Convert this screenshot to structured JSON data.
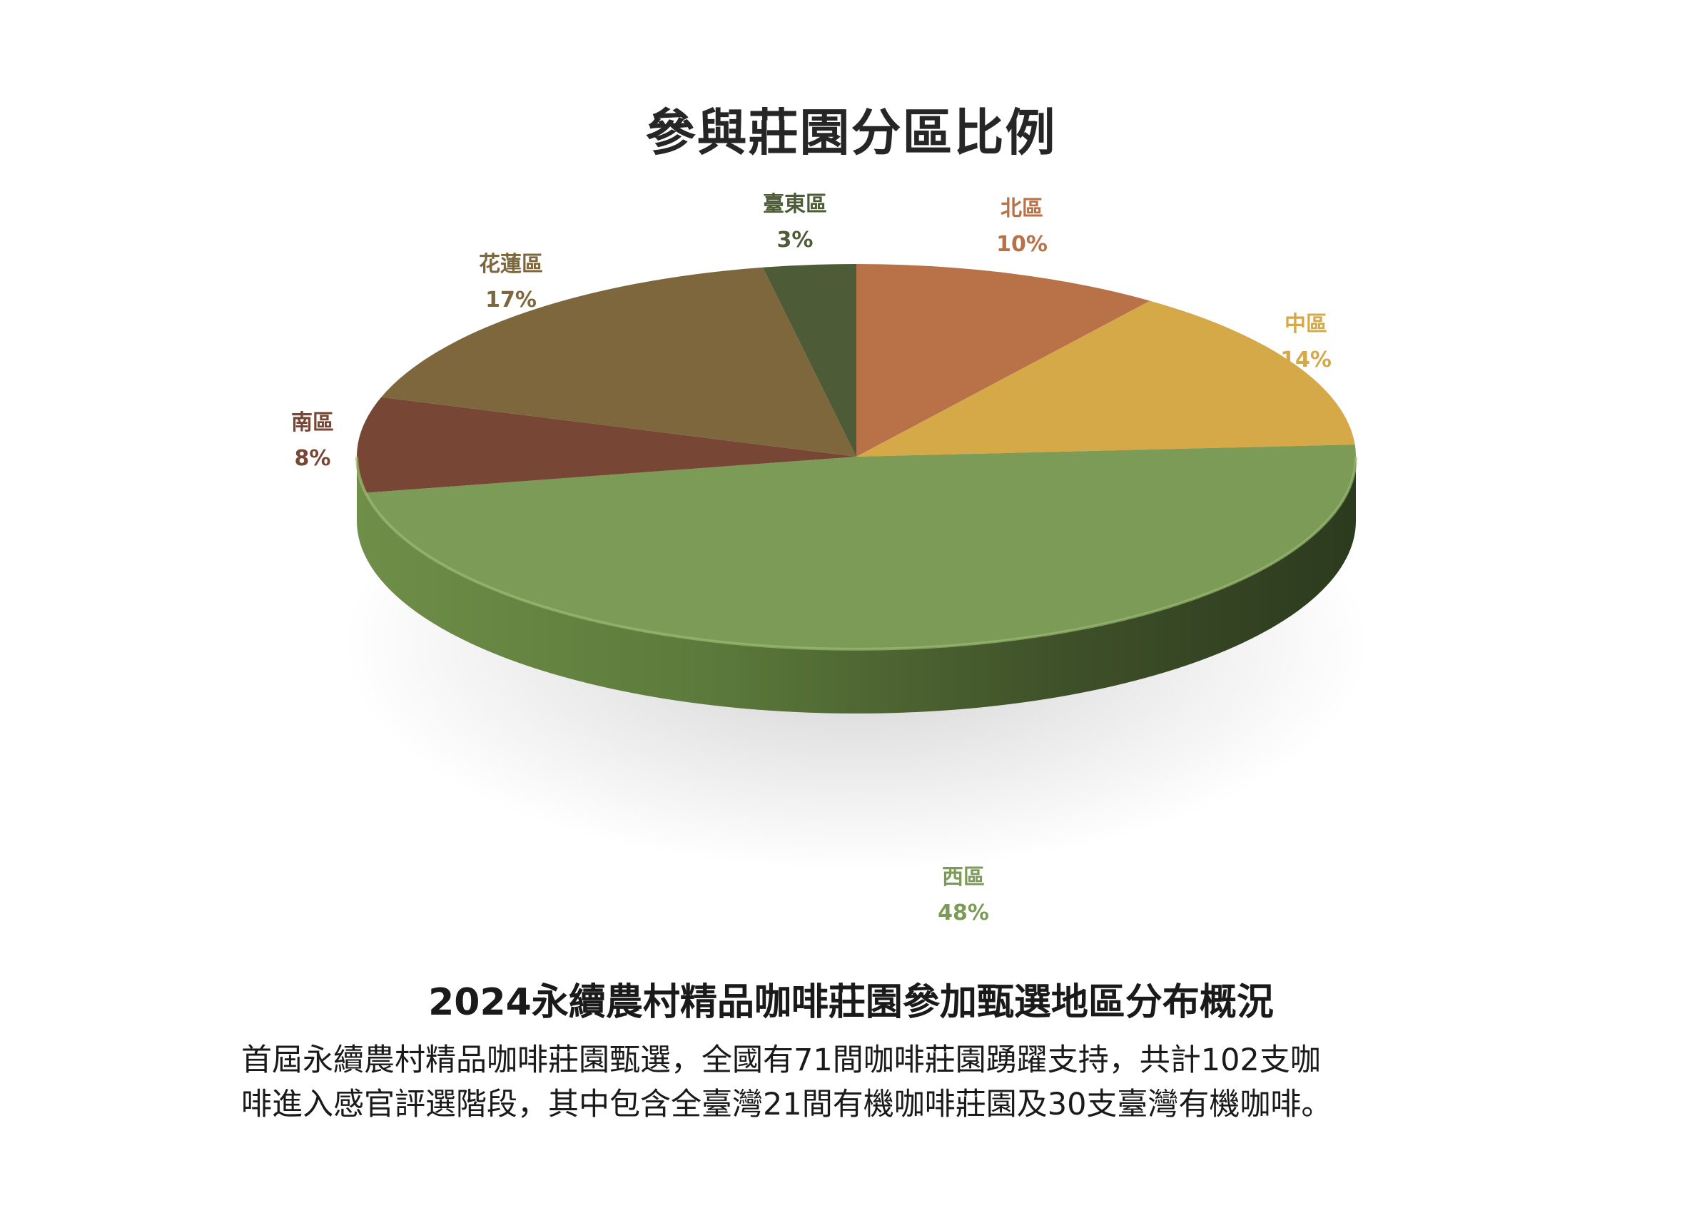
{
  "title": "參與莊園分區比例",
  "chart_data": {
    "type": "pie",
    "title": "參與莊園分區比例",
    "slices": [
      {
        "label": "北區",
        "value": 10,
        "pct_label": "10%",
        "color": "#b97148"
      },
      {
        "label": "中區",
        "value": 14,
        "pct_label": "14%",
        "color": "#d5a848"
      },
      {
        "label": "西區",
        "value": 48,
        "pct_label": "48%",
        "color": "#7b9b57"
      },
      {
        "label": "南區",
        "value": 8,
        "pct_label": "8%",
        "color": "#774634"
      },
      {
        "label": "花蓮區",
        "value": 17,
        "pct_label": "17%",
        "color": "#7e673c"
      },
      {
        "label": "臺東區",
        "value": 3,
        "pct_label": "3%",
        "color": "#4d5b37"
      }
    ],
    "style": "3d-pie"
  },
  "caption": {
    "title": "2024永續農村精品咖啡莊園參加甄選地區分布概況",
    "line1": "首屆永續農村精品咖啡莊園甄選，全國有71間咖啡莊園踴躍支持，共計102支咖",
    "line2": "啡進入感官評選階段，其中包含全臺灣21間有機咖啡莊園及30支臺灣有機咖啡。"
  }
}
